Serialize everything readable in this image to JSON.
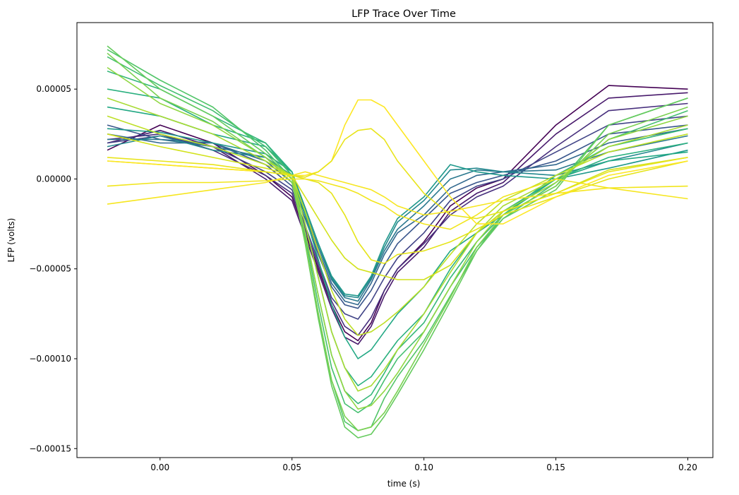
{
  "chart_data": {
    "type": "line",
    "title": "LFP Trace Over Time",
    "xlabel": "time (s)",
    "ylabel": "LFP (volts)",
    "xlim": [
      -0.0315,
      0.2095
    ],
    "ylim": [
      -0.000155,
      8.7e-05
    ],
    "grid": false,
    "legend": "none",
    "x_ticks": [
      {
        "value": 0.0,
        "label": "0.00"
      },
      {
        "value": 0.05,
        "label": "0.05"
      },
      {
        "value": 0.1,
        "label": "0.10"
      },
      {
        "value": 0.15,
        "label": "0.15"
      },
      {
        "value": 0.2,
        "label": "0.20"
      }
    ],
    "y_ticks": [
      {
        "value": 5e-05,
        "label": "0.00005"
      },
      {
        "value": 0.0,
        "label": "0.00000"
      },
      {
        "value": -5e-05,
        "label": "−0.00005"
      },
      {
        "value": -0.0001,
        "label": "−0.00010"
      },
      {
        "value": -0.00015,
        "label": "−0.00015"
      }
    ],
    "x": [
      -0.02,
      0.0,
      0.02,
      0.04,
      0.05,
      0.055,
      0.06,
      0.065,
      0.07,
      0.075,
      0.08,
      0.085,
      0.09,
      0.1,
      0.11,
      0.12,
      0.13,
      0.15,
      0.17,
      0.2
    ],
    "series": [
      {
        "color": "#440154",
        "values": [
          1.6e-05,
          3e-05,
          2e-05,
          2e-06,
          -1e-05,
          -3e-05,
          -5e-05,
          -7e-05,
          -8.5e-05,
          -9e-05,
          -8e-05,
          -6.2e-05,
          -5e-05,
          -3.5e-05,
          -1.5e-05,
          -5e-06,
          0.0,
          3e-05,
          5.2e-05,
          5e-05
        ]
      },
      {
        "color": "#481a6c",
        "values": [
          2e-05,
          2.7e-05,
          1.8e-05,
          0.0,
          -1.2e-05,
          -3.2e-05,
          -5.2e-05,
          -7.2e-05,
          -8.8e-05,
          -9.2e-05,
          -8.2e-05,
          -6.5e-05,
          -5.2e-05,
          -3.8e-05,
          -1.8e-05,
          -8e-06,
          -2e-06,
          2.5e-05,
          4.5e-05,
          4.8e-05
        ]
      },
      {
        "color": "#472f7d",
        "values": [
          2.2e-05,
          2.5e-05,
          1.6e-05,
          2e-06,
          -8e-06,
          -2.8e-05,
          -4.8e-05,
          -6.8e-05,
          -8.2e-05,
          -8.7e-05,
          -7.7e-05,
          -6.2e-05,
          -5e-05,
          -3.6e-05,
          -2e-05,
          -1e-05,
          -4e-06,
          1.8e-05,
          3.8e-05,
          4.2e-05
        ]
      },
      {
        "color": "#414487",
        "values": [
          2e-05,
          2.4e-05,
          1.8e-05,
          4e-06,
          -6e-06,
          -2.6e-05,
          -4.6e-05,
          -6.6e-05,
          -7.5e-05,
          -7.8e-05,
          -6.8e-05,
          -5.5e-05,
          -4.4e-05,
          -3e-05,
          -1.2e-05,
          -4e-06,
          0.0,
          1.5e-05,
          3e-05,
          3.5e-05
        ]
      },
      {
        "color": "#39568c",
        "values": [
          3e-05,
          2.2e-05,
          2e-05,
          8e-06,
          -4e-06,
          -2.2e-05,
          -4.2e-05,
          -6e-05,
          -7e-05,
          -7.2e-05,
          -6.2e-05,
          -4.8e-05,
          -3.6e-05,
          -2.2e-05,
          -8e-06,
          -2e-06,
          2e-06,
          1e-05,
          2.5e-05,
          3e-05
        ]
      },
      {
        "color": "#31688e",
        "values": [
          2.5e-05,
          2e-05,
          2e-05,
          1e-05,
          -2e-06,
          -2e-05,
          -4e-05,
          -5.8e-05,
          -6.8e-05,
          -7e-05,
          -5.8e-05,
          -4.2e-05,
          -3e-05,
          -2e-05,
          -5e-06,
          2e-06,
          4e-06,
          8e-06,
          2e-05,
          2.8e-05
        ]
      },
      {
        "color": "#2a788e",
        "values": [
          2.2e-05,
          2.2e-05,
          1.8e-05,
          1.2e-05,
          0.0,
          -1.8e-05,
          -3.8e-05,
          -5.6e-05,
          -6.6e-05,
          -6.8e-05,
          -5.6e-05,
          -4e-05,
          -2.8e-05,
          -1.5e-05,
          0.0,
          5e-06,
          4e-06,
          5e-06,
          1.5e-05,
          2.4e-05
        ]
      },
      {
        "color": "#23888e",
        "values": [
          1.8e-05,
          2.4e-05,
          1.6e-05,
          1.2e-05,
          2e-06,
          -1.6e-05,
          -3.6e-05,
          -5.5e-05,
          -6.5e-05,
          -6.6e-05,
          -5.5e-05,
          -3.8e-05,
          -2.4e-05,
          -1.2e-05,
          5e-06,
          6e-06,
          4e-06,
          2e-06,
          1e-05,
          2e-05
        ]
      },
      {
        "color": "#1f988b",
        "values": [
          2.8e-05,
          2.6e-05,
          2e-05,
          1.4e-05,
          4e-06,
          -1.6e-05,
          -3.6e-05,
          -5.4e-05,
          -6.4e-05,
          -6.5e-05,
          -5.4e-05,
          -3.6e-05,
          -2.2e-05,
          -1e-05,
          8e-06,
          4e-06,
          2e-06,
          0.0,
          6e-06,
          1.6e-05
        ]
      },
      {
        "color": "#22a884",
        "values": [
          4e-05,
          3.5e-05,
          2.5e-05,
          1.8e-05,
          4e-06,
          -2e-05,
          -4.5e-05,
          -7e-05,
          -8.8e-05,
          -0.0001,
          -9.5e-05,
          -8.5e-05,
          -7.5e-05,
          -6e-05,
          -4e-05,
          -3e-05,
          -2e-05,
          0.0,
          1e-05,
          1.5e-05
        ]
      },
      {
        "color": "#2ab07f",
        "values": [
          5e-05,
          4.5e-05,
          3e-05,
          2e-05,
          4e-06,
          -2.5e-05,
          -5.5e-05,
          -8.5e-05,
          -0.000105,
          -0.000115,
          -0.00011,
          -0.0001,
          -9e-05,
          -7.5e-05,
          -5e-05,
          -3e-05,
          -1.8e-05,
          0.0,
          1.2e-05,
          2e-05
        ]
      },
      {
        "color": "#35b779",
        "values": [
          6e-05,
          5e-05,
          3.5e-05,
          2e-05,
          2e-06,
          -3e-05,
          -6.5e-05,
          -9.8e-05,
          -0.000118,
          -0.000125,
          -0.00012,
          -0.000108,
          -9.5e-05,
          -8e-05,
          -5.5e-05,
          -3.5e-05,
          -2e-05,
          2e-06,
          1.8e-05,
          2.8e-05
        ]
      },
      {
        "color": "#44bf70",
        "values": [
          6.8e-05,
          5.2e-05,
          3.8e-05,
          1.8e-05,
          2e-06,
          -3.2e-05,
          -7e-05,
          -0.000105,
          -0.000125,
          -0.00013,
          -0.000125,
          -0.000112,
          -0.0001,
          -8.5e-05,
          -6e-05,
          -3.8e-05,
          -2.2e-05,
          -2e-06,
          2.2e-05,
          3.8e-05
        ]
      },
      {
        "color": "#52c569",
        "values": [
          7.2e-05,
          5.5e-05,
          4e-05,
          1.6e-05,
          0.0,
          -3.5e-05,
          -7.5e-05,
          -0.000112,
          -0.000135,
          -0.00014,
          -0.000138,
          -0.000122,
          -0.00011,
          -9e-05,
          -6.5e-05,
          -4e-05,
          -2e-05,
          -4e-06,
          3e-05,
          4.5e-05
        ]
      },
      {
        "color": "#65cb5e",
        "values": [
          7.4e-05,
          5e-05,
          3.5e-05,
          1.4e-05,
          0.0,
          -3.6e-05,
          -7.8e-05,
          -0.000115,
          -0.000138,
          -0.000144,
          -0.000142,
          -0.000132,
          -0.00012,
          -9.5e-05,
          -6.8e-05,
          -4e-05,
          -2.2e-05,
          -6e-06,
          3e-05,
          4.5e-05
        ]
      },
      {
        "color": "#7ad151",
        "values": [
          7e-05,
          4.5e-05,
          3.2e-05,
          1.2e-05,
          -2e-06,
          -3.5e-05,
          -7.5e-05,
          -0.000112,
          -0.000132,
          -0.00014,
          -0.000138,
          -0.00013,
          -0.000118,
          -9.2e-05,
          -6.6e-05,
          -3.8e-05,
          -2e-05,
          -4e-06,
          2.5e-05,
          4e-05
        ]
      },
      {
        "color": "#90d743",
        "values": [
          6.2e-05,
          4.2e-05,
          3e-05,
          1.2e-05,
          0.0,
          -3e-05,
          -6.5e-05,
          -9.8e-05,
          -0.000118,
          -0.000128,
          -0.000126,
          -0.000118,
          -0.000108,
          -8.5e-05,
          -6e-05,
          -3.5e-05,
          -1.8e-05,
          -2e-06,
          2.2e-05,
          3.5e-05
        ]
      },
      {
        "color": "#a8db34",
        "values": [
          4.5e-05,
          3.5e-05,
          2.5e-05,
          1e-05,
          2e-06,
          -2.5e-05,
          -5.5e-05,
          -8.5e-05,
          -0.000105,
          -0.000118,
          -0.000115,
          -0.000106,
          -9.5e-05,
          -7.5e-05,
          -5.2e-05,
          -3e-05,
          -1.5e-05,
          0.0,
          1.8e-05,
          3e-05
        ]
      },
      {
        "color": "#bddf26",
        "values": [
          3.5e-05,
          2.5e-05,
          1.8e-05,
          8e-06,
          2e-06,
          -1.8e-05,
          -4e-05,
          -6.2e-05,
          -7.8e-05,
          -8.7e-05,
          -8.5e-05,
          -8e-05,
          -7.4e-05,
          -6e-05,
          -4.2e-05,
          -2.5e-05,
          -1.2e-05,
          2e-06,
          1.5e-05,
          2.5e-05
        ]
      },
      {
        "color": "#d2e21b",
        "values": [
          2.5e-05,
          1.8e-05,
          1.2e-05,
          6e-06,
          2e-06,
          -1e-05,
          -2.2e-05,
          -3.4e-05,
          -4.4e-05,
          -5e-05,
          -5.2e-05,
          -5.4e-05,
          -5.6e-05,
          -5.6e-05,
          -4.8e-05,
          -3e-05,
          -1.8e-05,
          -8e-06,
          5e-06,
          1.2e-05
        ]
      },
      {
        "color": "#e5e419",
        "values": [
          1e-05,
          8e-06,
          6e-06,
          4e-06,
          2e-06,
          0.0,
          -2e-06,
          -8e-06,
          -2e-05,
          -3.5e-05,
          -4.5e-05,
          -4.7e-05,
          -4.2e-05,
          -4e-05,
          -3.5e-05,
          -2.8e-05,
          -2e-05,
          -1e-05,
          0.0,
          1e-05
        ]
      },
      {
        "color": "#f1e51d",
        "values": [
          -4e-06,
          -2e-06,
          -2e-06,
          -1e-06,
          0.0,
          0.0,
          -1e-06,
          -3e-06,
          -5e-06,
          -8e-06,
          -1.2e-05,
          -1.5e-05,
          -2e-05,
          -2.5e-05,
          -2.8e-05,
          -2e-05,
          -1e-05,
          0.0,
          -5e-06,
          -4e-06
        ]
      },
      {
        "color": "#f6e620",
        "values": [
          -1.4e-05,
          -1e-05,
          -6e-06,
          -2e-06,
          2e-06,
          4e-06,
          2e-06,
          0.0,
          -2e-06,
          -4e-06,
          -6e-06,
          -1e-05,
          -1.5e-05,
          -2e-05,
          -1.8e-05,
          -1.5e-05,
          -1.2e-05,
          -8e-06,
          -5e-06,
          -1.1e-05
        ]
      },
      {
        "color": "#fde725",
        "values": [
          1e-05,
          8e-06,
          6e-06,
          4e-06,
          2e-06,
          2e-06,
          4e-06,
          1e-05,
          3e-05,
          4.4e-05,
          4.4e-05,
          4e-05,
          3e-05,
          1e-05,
          -1e-05,
          -2.5e-05,
          -2.5e-05,
          -1e-05,
          2e-06,
          1e-05
        ]
      },
      {
        "color": "#e8e41a",
        "values": [
          1.2e-05,
          1e-05,
          8e-06,
          4e-06,
          2e-06,
          1e-06,
          4e-06,
          1e-05,
          2.2e-05,
          2.7e-05,
          2.8e-05,
          2.2e-05,
          1e-05,
          -8e-06,
          -2e-05,
          -2.2e-05,
          -1.8e-05,
          -8e-06,
          4e-06,
          1.2e-05
        ]
      }
    ]
  }
}
